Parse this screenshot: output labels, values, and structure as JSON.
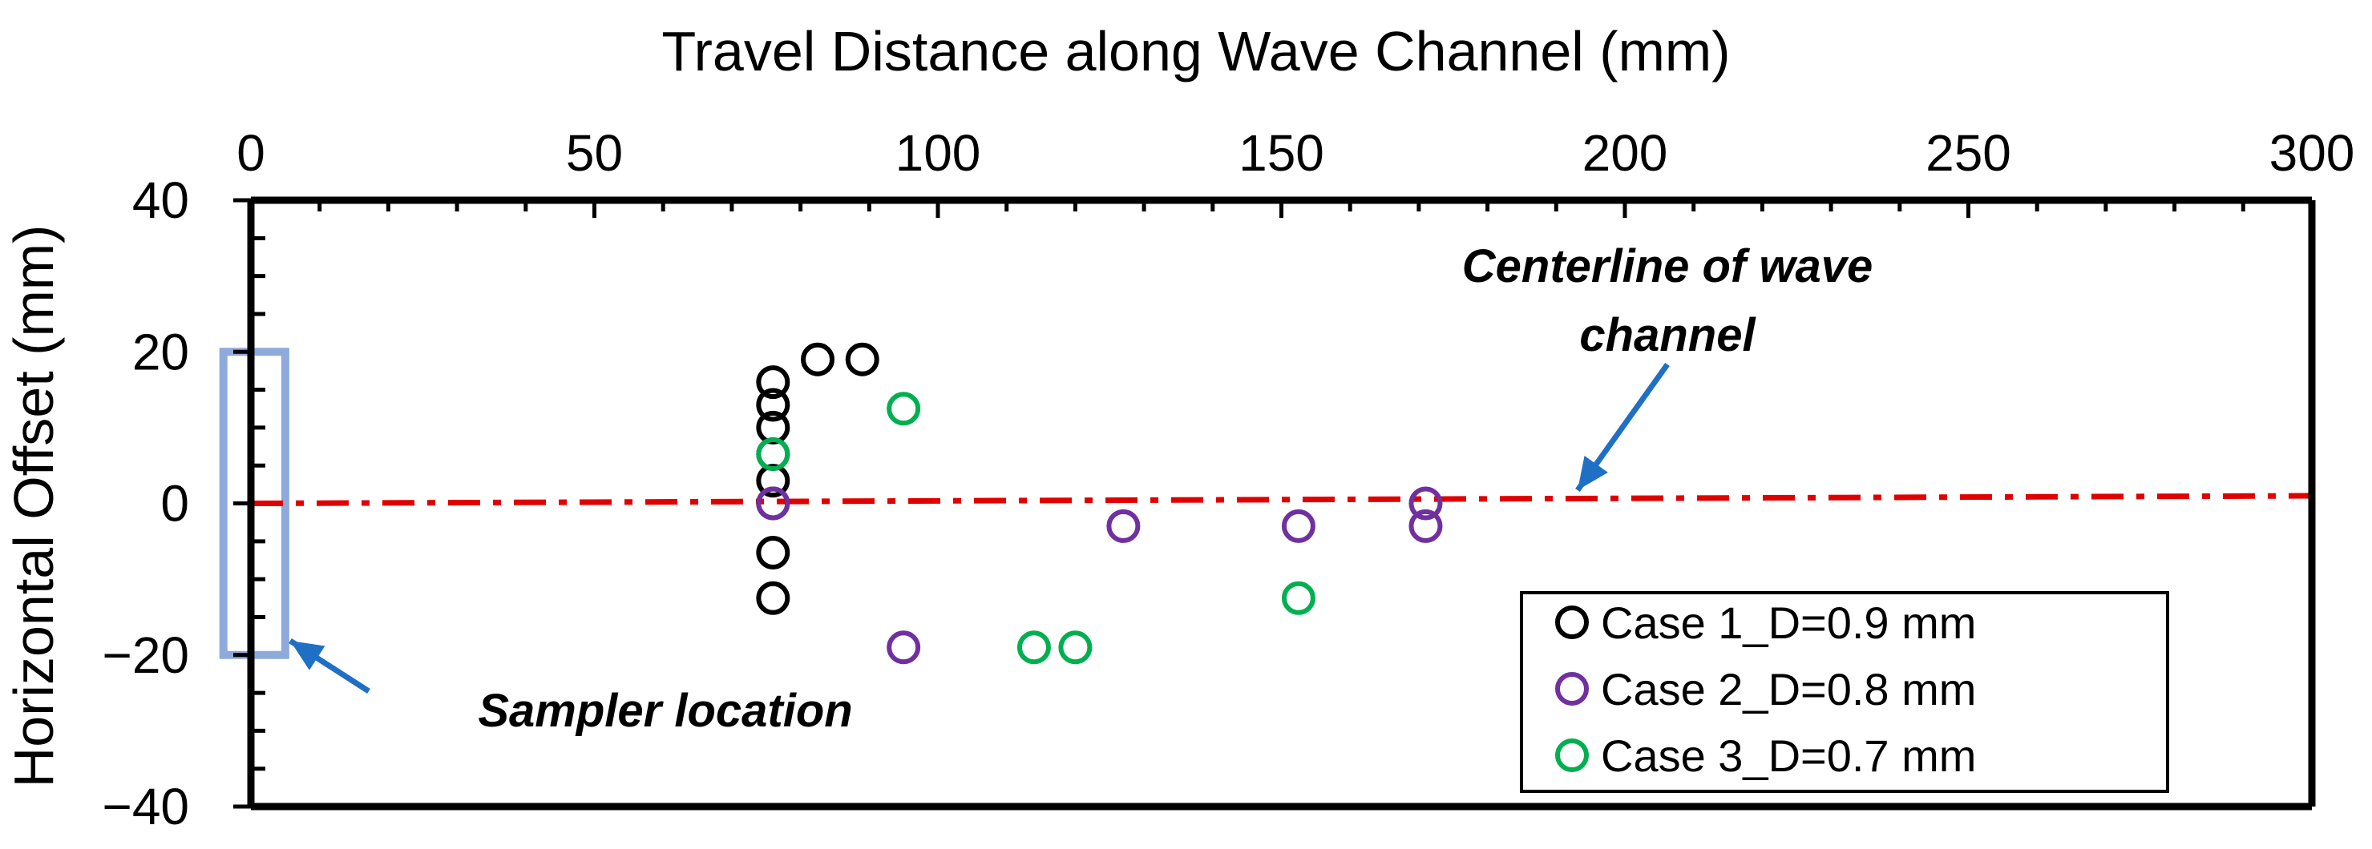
{
  "chart_data": {
    "type": "scatter",
    "xlabel": "Travel Distance along Wave Channel (mm)",
    "ylabel": "Horizontal Offset (mm)",
    "xlim": [
      0,
      300
    ],
    "ylim": [
      -40,
      40
    ],
    "xticks": [
      0,
      50,
      100,
      150,
      200,
      250,
      300
    ],
    "yticks": [
      -40,
      -20,
      0,
      20,
      40
    ],
    "ytick_labels": [
      "−40",
      "−20",
      "0",
      "20",
      "40"
    ],
    "x_axis_position": "top",
    "grid": false,
    "legend_position": "bottom-right",
    "series": [
      {
        "name": "Case 1_D=0.9 mm",
        "color": "#000000",
        "points": [
          {
            "x": 76,
            "y": 16
          },
          {
            "x": 76,
            "y": 13
          },
          {
            "x": 76,
            "y": 10
          },
          {
            "x": 76,
            "y": 6.5
          },
          {
            "x": 76,
            "y": 3
          },
          {
            "x": 76,
            "y": 0
          },
          {
            "x": 76,
            "y": -6.5
          },
          {
            "x": 76,
            "y": -12.5
          },
          {
            "x": 82.5,
            "y": 19
          },
          {
            "x": 89,
            "y": 19
          }
        ]
      },
      {
        "name": "Case 2_D=0.8 mm",
        "color": "#7030a0",
        "points": [
          {
            "x": 76,
            "y": 0
          },
          {
            "x": 95,
            "y": -19
          },
          {
            "x": 127,
            "y": -3
          },
          {
            "x": 152.5,
            "y": -3
          },
          {
            "x": 171,
            "y": 0
          },
          {
            "x": 171,
            "y": -3
          }
        ]
      },
      {
        "name": "Case 3_D=0.7 mm",
        "color": "#00b050",
        "points": [
          {
            "x": 95,
            "y": 12.5
          },
          {
            "x": 76,
            "y": 6.5
          },
          {
            "x": 114,
            "y": -19
          },
          {
            "x": 120,
            "y": -19
          },
          {
            "x": 152.5,
            "y": -12.5
          }
        ]
      }
    ],
    "centerline": {
      "label": "Centerline of wave channel",
      "color": "#e00000",
      "from": {
        "x": 0,
        "y": 0
      },
      "to": {
        "x": 300,
        "y": 1
      }
    },
    "sampler": {
      "label": "Sampler location",
      "color": "#8eaadb",
      "x_range": [
        -4,
        5
      ],
      "y_range": [
        -20,
        20
      ]
    },
    "arrow_color": "#1f6fc5"
  }
}
